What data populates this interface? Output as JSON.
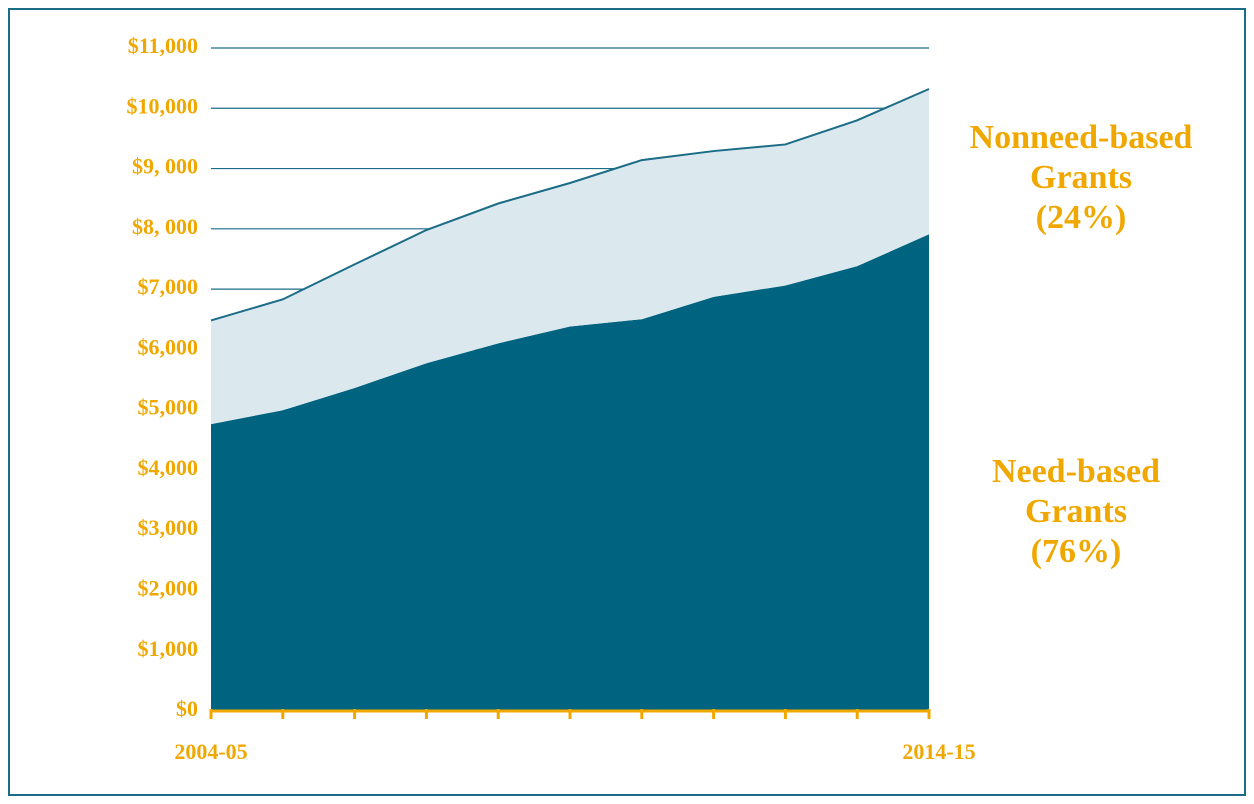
{
  "chart_data": {
    "type": "stacked-area",
    "categories": [
      "2004-05",
      null,
      null,
      null,
      null,
      null,
      null,
      null,
      null,
      null,
      "2014-15"
    ],
    "series": [
      {
        "name": "Need-based Grants",
        "share": "(76%)",
        "color": "#00637f",
        "values": [
          4760,
          4990,
          5360,
          5770,
          6100,
          6380,
          6500,
          6870,
          7060,
          7380,
          7910
        ]
      },
      {
        "name": "Nonneed-based Grants",
        "share": "(24%)",
        "color": "#dbe8ee",
        "values": [
          1720,
          1840,
          2050,
          2210,
          2320,
          2380,
          2640,
          2420,
          2340,
          2420,
          2410
        ]
      }
    ],
    "ylim": [
      0,
      11000
    ],
    "yticks": [
      {
        "value": 0,
        "label": "$0"
      },
      {
        "value": 1000,
        "label": "$1,000"
      },
      {
        "value": 2000,
        "label": "$2,000"
      },
      {
        "value": 3000,
        "label": "$3,000"
      },
      {
        "value": 4000,
        "label": "$4,000"
      },
      {
        "value": 5000,
        "label": "$5,000"
      },
      {
        "value": 6000,
        "label": "$6,000"
      },
      {
        "value": 7000,
        "label": "$7,000"
      },
      {
        "value": 8000,
        "label": "$8, 000"
      },
      {
        "value": 9000,
        "label": "$9, 000"
      },
      {
        "value": 10000,
        "label": "$10,000"
      },
      {
        "value": 11000,
        "label": "$11,000"
      }
    ],
    "grid": true
  }
}
